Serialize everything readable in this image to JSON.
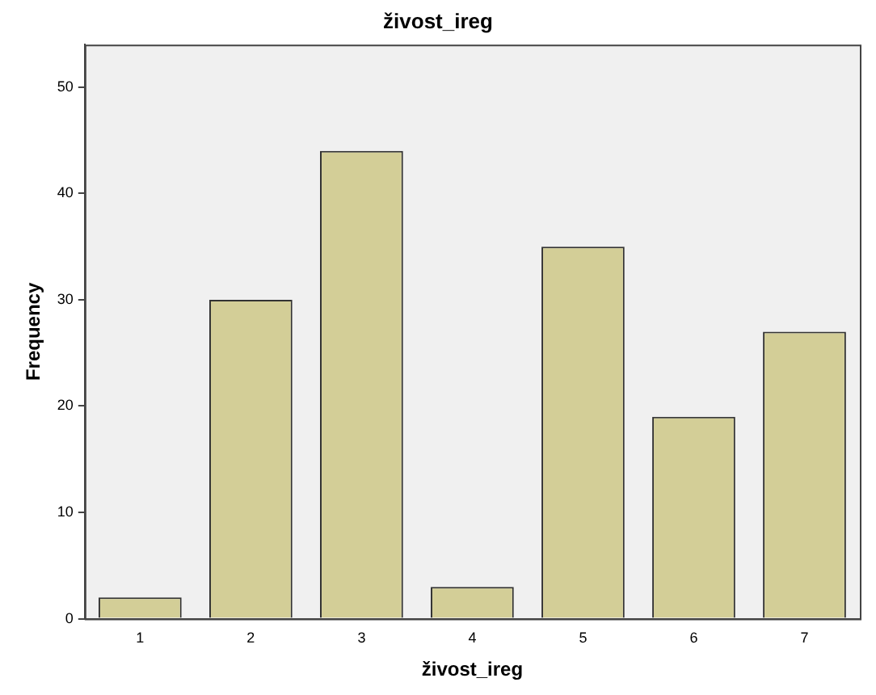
{
  "chart_data": {
    "type": "bar",
    "title": "živost_ireg",
    "xlabel": "živost_ireg",
    "ylabel": "Frequency",
    "categories": [
      "1",
      "2",
      "3",
      "4",
      "5",
      "6",
      "7"
    ],
    "values": [
      2,
      30,
      44,
      3,
      35,
      19,
      27
    ],
    "color": "#d3ce97",
    "ylim": [
      0,
      54
    ],
    "yticks": [
      0,
      10,
      20,
      30,
      40,
      50
    ],
    "grid": false,
    "legend": false
  }
}
